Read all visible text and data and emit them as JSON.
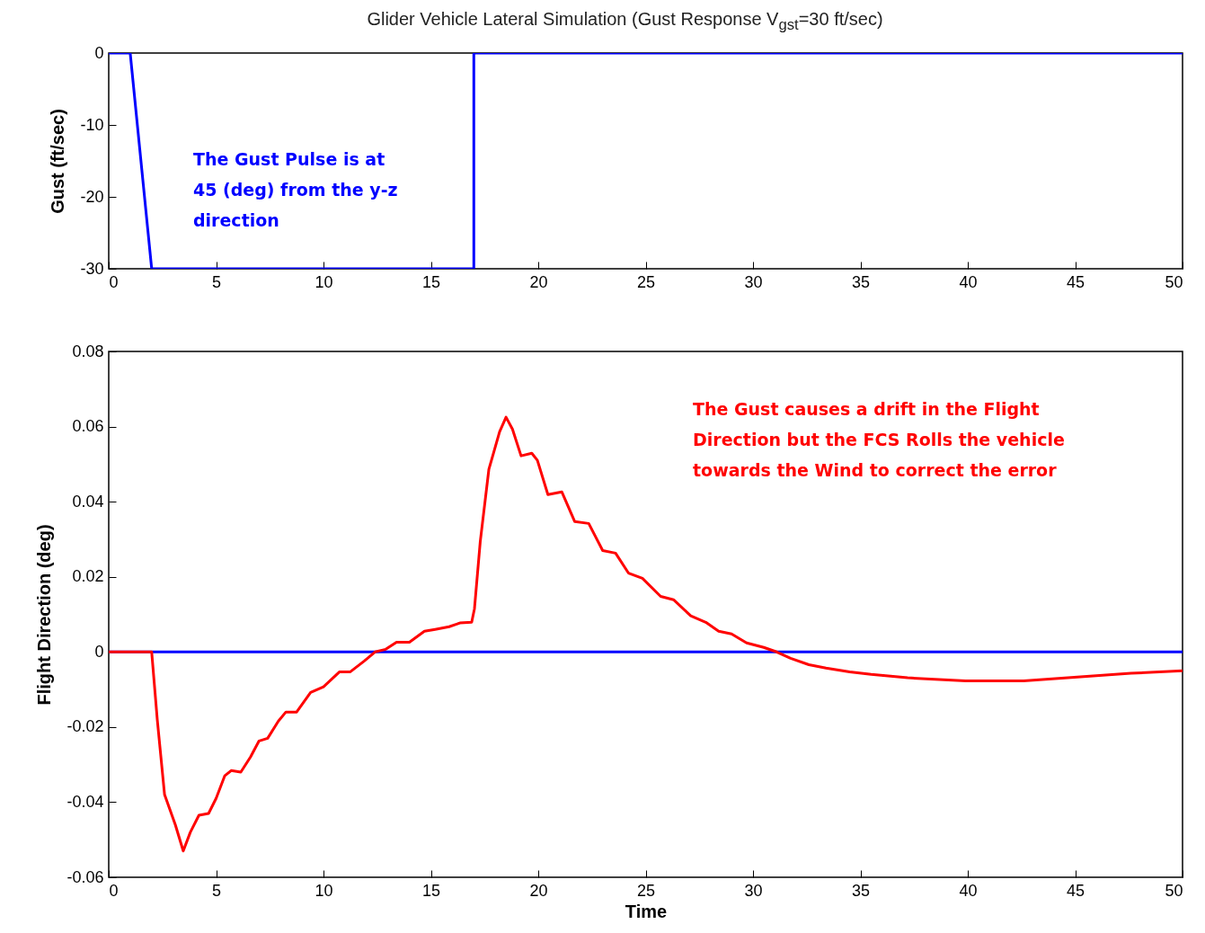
{
  "chart_data": [
    {
      "type": "line",
      "title": "Glider Vehicle Lateral Simulation (Gust Response V$_{gst}$=30 ft/sec)",
      "ylabel": "Gust (ft/sec)",
      "annotations": [
        "The Gust Pulse is at 45 (deg) from the y-z direction"
      ],
      "xlim": [
        0,
        50
      ],
      "xticks": [
        0,
        5,
        10,
        15,
        20,
        25,
        30,
        35,
        40,
        45,
        50
      ],
      "ylim": [
        -30,
        0
      ],
      "yticks": [
        -30,
        -20,
        -10,
        0
      ],
      "marker": "none",
      "line_style": "solid",
      "series": [
        {
          "color": "#0000ff",
          "x": [
            0,
            1,
            2,
            17,
            17,
            50
          ],
          "values": [
            0,
            0,
            -30,
            -30,
            0,
            0
          ]
        }
      ]
    },
    {
      "type": "line",
      "xlabel": "Time",
      "ylabel": "Flight Direction (deg)",
      "annotations": [
        "The Gust causes a drift in the Flight Direction but the FCS Rolls the vehicle towards the Wind to correct the error"
      ],
      "xlim": [
        0,
        50
      ],
      "xticks": [
        0,
        5,
        10,
        15,
        20,
        25,
        30,
        35,
        40,
        45,
        50
      ],
      "ylim": [
        -0.06,
        0.08
      ],
      "yticks": [
        -0.06,
        -0.04,
        -0.02,
        0,
        0.02,
        0.04,
        0.06,
        0.08
      ],
      "marker": "none",
      "line_style": "solid",
      "ref_lines": [
        {
          "axis": "y",
          "value": 0,
          "color": "#0000ff"
        }
      ],
      "series": [
        {
          "color": "#ff0000",
          "x": [
            0,
            2,
            2.26,
            2.6,
            3.1,
            3.47,
            3.8,
            4.2,
            4.65,
            5,
            5.4,
            5.7,
            6.15,
            6.6,
            7,
            7.4,
            7.9,
            8.25,
            8.75,
            9.4,
            10,
            10.75,
            11.25,
            11.9,
            12.4,
            12.9,
            13.4,
            14,
            14.7,
            15.2,
            15.85,
            16.35,
            16.9,
            17.03,
            17.3,
            17.7,
            18.2,
            18.5,
            18.8,
            19.2,
            19.7,
            19.96,
            20.45,
            21.1,
            21.7,
            22.35,
            23,
            23.6,
            24.2,
            24.85,
            25.7,
            26.3,
            27.1,
            27.8,
            28.4,
            29,
            29.7,
            30.5,
            31.1,
            31.75,
            32.6,
            33.4,
            34.5,
            35.5,
            37.2,
            39.9,
            42.6,
            45.1,
            47.6,
            50
          ],
          "values": [
            0,
            0,
            -0.018,
            -0.038,
            -0.046,
            -0.053,
            -0.048,
            -0.0435,
            -0.043,
            -0.039,
            -0.033,
            -0.0316,
            -0.032,
            -0.028,
            -0.0237,
            -0.023,
            -0.0184,
            -0.016,
            -0.016,
            -0.0108,
            -0.0093,
            -0.0053,
            -0.0053,
            -0.0024,
            0,
            0.0007,
            0.0026,
            0.0026,
            0.0055,
            0.006,
            0.0067,
            0.0077,
            0.0079,
            0.0115,
            0.0294,
            0.0486,
            0.0586,
            0.0625,
            0.0593,
            0.0522,
            0.0529,
            0.051,
            0.0419,
            0.0426,
            0.0347,
            0.0342,
            0.027,
            0.0263,
            0.021,
            0.0196,
            0.0148,
            0.0139,
            0.0096,
            0.0079,
            0.0055,
            0.0048,
            0.0024,
            0.0012,
            0,
            -0.0017,
            -0.0034,
            -0.0043,
            -0.0053,
            -0.006,
            -0.0069,
            -0.0077,
            -0.0077,
            -0.0067,
            -0.0057,
            -0.005
          ]
        }
      ]
    }
  ]
}
